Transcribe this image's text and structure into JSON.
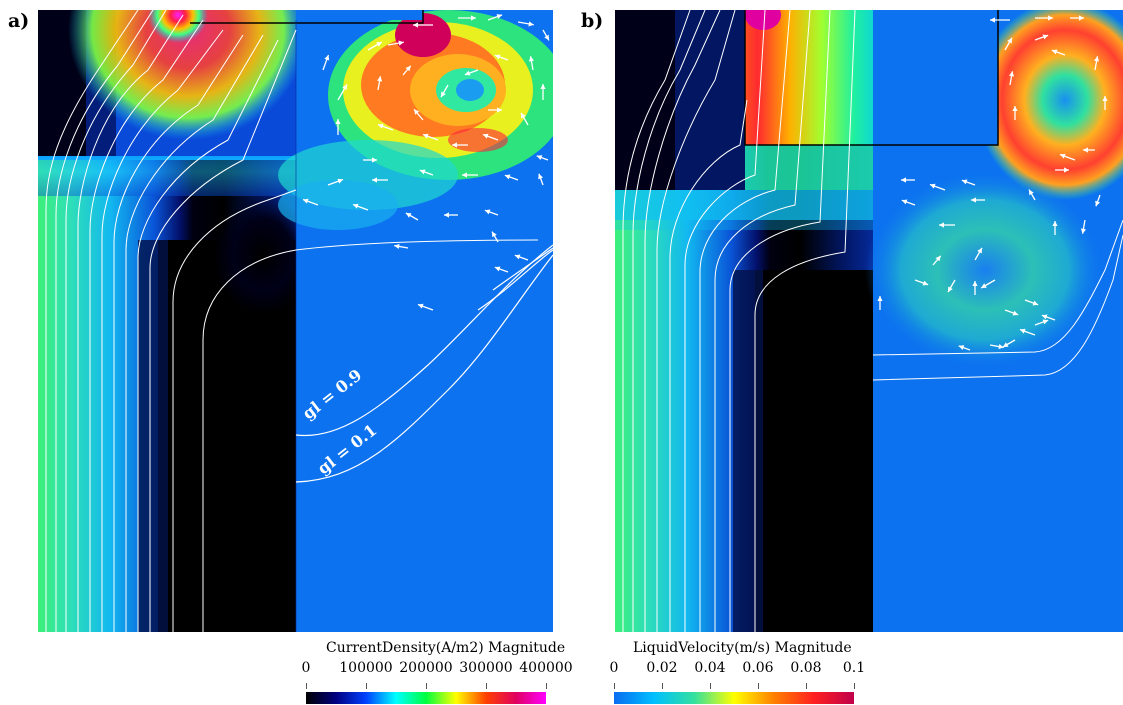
{
  "panels": {
    "a": {
      "label": "a)",
      "contour_labels": [
        "gl = 0.9",
        "gl = 0.1"
      ],
      "colorbar": {
        "title": "CurrentDensity(A/m2) Magnitude",
        "ticks": [
          "0",
          "100000",
          "200000",
          "300000",
          "400000"
        ],
        "colors": [
          "#000000",
          "#000080",
          "#0040ff",
          "#00ffff",
          "#00ff40",
          "#ffff00",
          "#ff4000",
          "#e00060",
          "#ff00ff"
        ]
      }
    },
    "b": {
      "label": "b)",
      "colorbar": {
        "title": "LiquidVelocity(m/s) Magnitude",
        "ticks": [
          "0",
          "0.02",
          "0.04",
          "0.06",
          "0.08",
          "0.1"
        ],
        "colors": [
          "#0a6cf0",
          "#00bfff",
          "#33e0a0",
          "#ffff00",
          "#ff8000",
          "#ff2020",
          "#c0004a"
        ]
      }
    }
  }
}
